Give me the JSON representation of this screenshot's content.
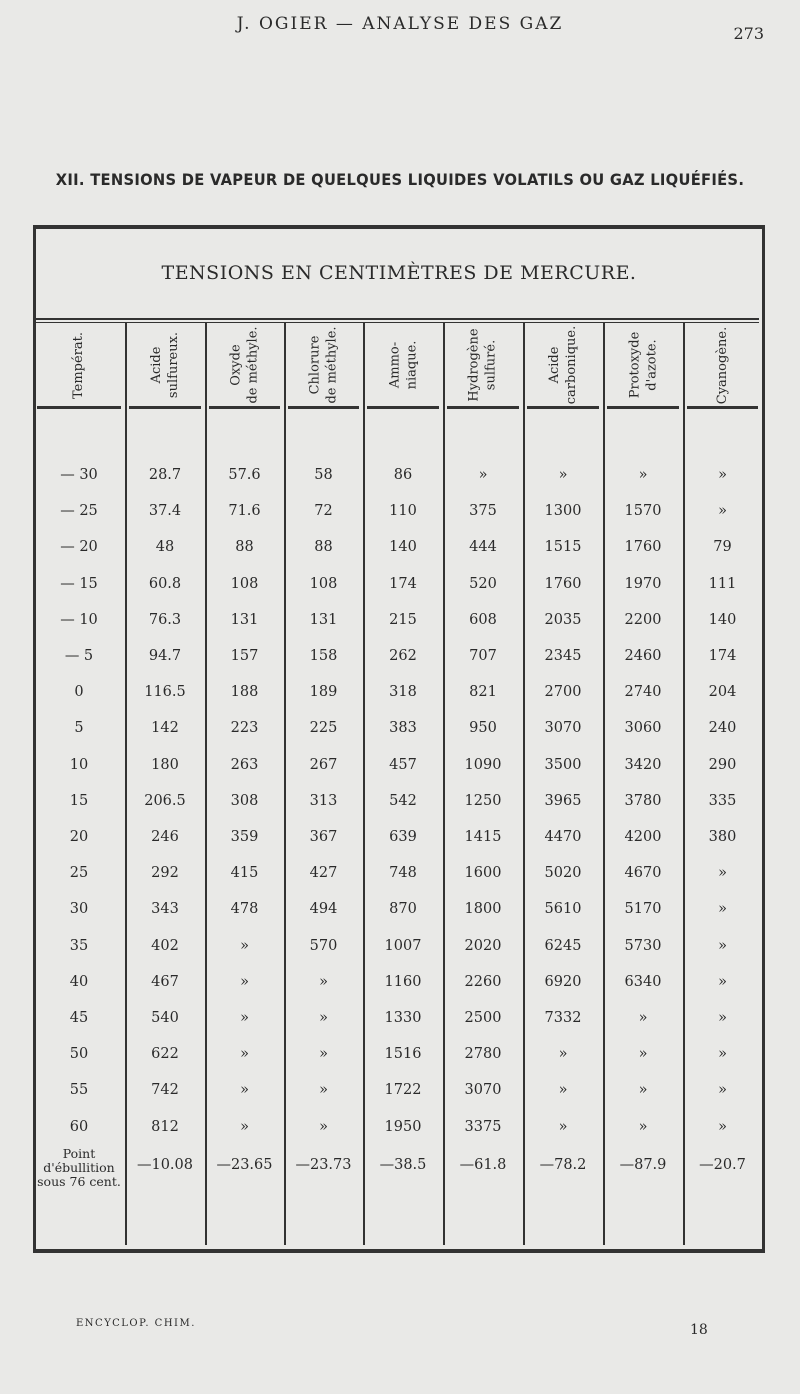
{
  "running_head": "J. OGIER — ANALYSE DES GAZ",
  "page_number": "273",
  "title": "XII. TENSIONS DE VAPEUR DE QUELQUES LIQUIDES VOLATILS OU GAZ LIQUÉFIÉS.",
  "table": {
    "subtitle": "TENSIONS EN CENTIMÈTRES DE MERCURE.",
    "headers": [
      "Températ.",
      "Acide\nsulfureux.",
      "Oxyde\nde méthyle.",
      "Chlorure\nde méthyle.",
      "Ammo-\nniaque.",
      "Hydrogène\nsulfuré.",
      "Acide\ncarbonique.",
      "Protoxyde\nd'azote.",
      "Cyanogène."
    ],
    "rows": [
      [
        "— 30",
        "28.7",
        "57.6",
        "58",
        "86",
        "»",
        "»",
        "»",
        "»"
      ],
      [
        "— 25",
        "37.4",
        "71.6",
        "72",
        "110",
        "375",
        "1300",
        "1570",
        "»"
      ],
      [
        "— 20",
        "48",
        "88",
        "88",
        "140",
        "444",
        "1515",
        "1760",
        "79"
      ],
      [
        "— 15",
        "60.8",
        "108",
        "108",
        "174",
        "520",
        "1760",
        "1970",
        "111"
      ],
      [
        "— 10",
        "76.3",
        "131",
        "131",
        "215",
        "608",
        "2035",
        "2200",
        "140"
      ],
      [
        "— 5",
        "94.7",
        "157",
        "158",
        "262",
        "707",
        "2345",
        "2460",
        "174"
      ],
      [
        "0",
        "116.5",
        "188",
        "189",
        "318",
        "821",
        "2700",
        "2740",
        "204"
      ],
      [
        "5",
        "142",
        "223",
        "225",
        "383",
        "950",
        "3070",
        "3060",
        "240"
      ],
      [
        "10",
        "180",
        "263",
        "267",
        "457",
        "1090",
        "3500",
        "3420",
        "290"
      ],
      [
        "15",
        "206.5",
        "308",
        "313",
        "542",
        "1250",
        "3965",
        "3780",
        "335"
      ],
      [
        "20",
        "246",
        "359",
        "367",
        "639",
        "1415",
        "4470",
        "4200",
        "380"
      ],
      [
        "25",
        "292",
        "415",
        "427",
        "748",
        "1600",
        "5020",
        "4670",
        "»"
      ],
      [
        "30",
        "343",
        "478",
        "494",
        "870",
        "1800",
        "5610",
        "5170",
        "»"
      ],
      [
        "35",
        "402",
        "»",
        "570",
        "1007",
        "2020",
        "6245",
        "5730",
        "»"
      ],
      [
        "40",
        "467",
        "»",
        "»",
        "1160",
        "2260",
        "6920",
        "6340",
        "»"
      ],
      [
        "45",
        "540",
        "»",
        "»",
        "1330",
        "2500",
        "7332",
        "»",
        "»"
      ],
      [
        "50",
        "622",
        "»",
        "»",
        "1516",
        "2780",
        "»",
        "»",
        "»"
      ],
      [
        "55",
        "742",
        "»",
        "»",
        "1722",
        "3070",
        "»",
        "»",
        "»"
      ],
      [
        "60",
        "812",
        "»",
        "»",
        "1950",
        "3375",
        "»",
        "»",
        "»"
      ]
    ],
    "boiling_label": "Point\nd'ébullition\nsous 76 cent.",
    "boiling_values": [
      "—10.08",
      "—23.65",
      "—23.73",
      "—38.5",
      "—61.8",
      "—78.2",
      "—87.9",
      "—20.7"
    ]
  },
  "footer": {
    "left": "ENCYCLOP. CHIM.",
    "right": "18"
  }
}
